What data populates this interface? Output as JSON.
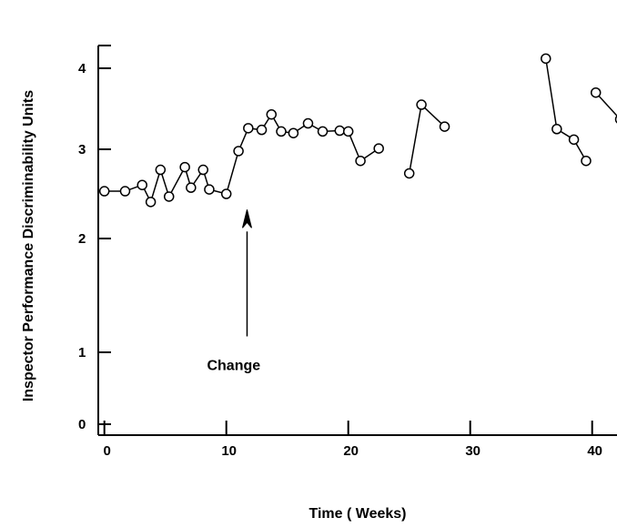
{
  "chart_data": {
    "type": "line",
    "title": "",
    "xlabel": "Time ( Weeks)",
    "ylabel": "Inspector Performance Discriminability Units",
    "xlim": [
      -0.5,
      42.5
    ],
    "y_ticks": [
      0,
      1,
      2,
      3,
      4
    ],
    "x_ticks": [
      0,
      10,
      20,
      30,
      40
    ],
    "grid": false,
    "series": [
      {
        "segments": [
          [
            [
              0,
              2.53
            ],
            [
              1.7,
              2.53
            ],
            [
              3.1,
              2.6
            ],
            [
              3.8,
              2.41
            ],
            [
              4.6,
              2.77
            ],
            [
              5.3,
              2.47
            ],
            [
              6.6,
              2.8
            ],
            [
              7.1,
              2.57
            ],
            [
              8.1,
              2.77
            ],
            [
              8.6,
              2.55
            ],
            [
              10,
              2.5
            ],
            [
              11,
              2.98
            ],
            [
              11.8,
              3.26
            ],
            [
              12.9,
              3.24
            ],
            [
              13.7,
              3.43
            ],
            [
              14.5,
              3.22
            ],
            [
              15.5,
              3.2
            ],
            [
              16.7,
              3.32
            ],
            [
              17.9,
              3.22
            ],
            [
              19.3,
              3.23
            ],
            [
              20,
              3.22
            ],
            [
              21,
              2.87
            ],
            [
              22.5,
              3.01
            ]
          ],
          [
            [
              25,
              2.73
            ],
            [
              26,
              3.55
            ],
            [
              27.9,
              3.28
            ]
          ],
          [
            [
              36.2,
              4.12
            ],
            [
              37.1,
              3.25
            ],
            [
              38.5,
              3.12
            ],
            [
              39.5,
              2.87
            ]
          ],
          [
            [
              40.3,
              3.7
            ],
            [
              42.3,
              3.37
            ]
          ]
        ]
      }
    ],
    "annotations": [
      {
        "text": "Change",
        "arrow_x": 11.7,
        "arrow_from_y": 1.14,
        "arrow_to_y": 2.14
      }
    ]
  }
}
